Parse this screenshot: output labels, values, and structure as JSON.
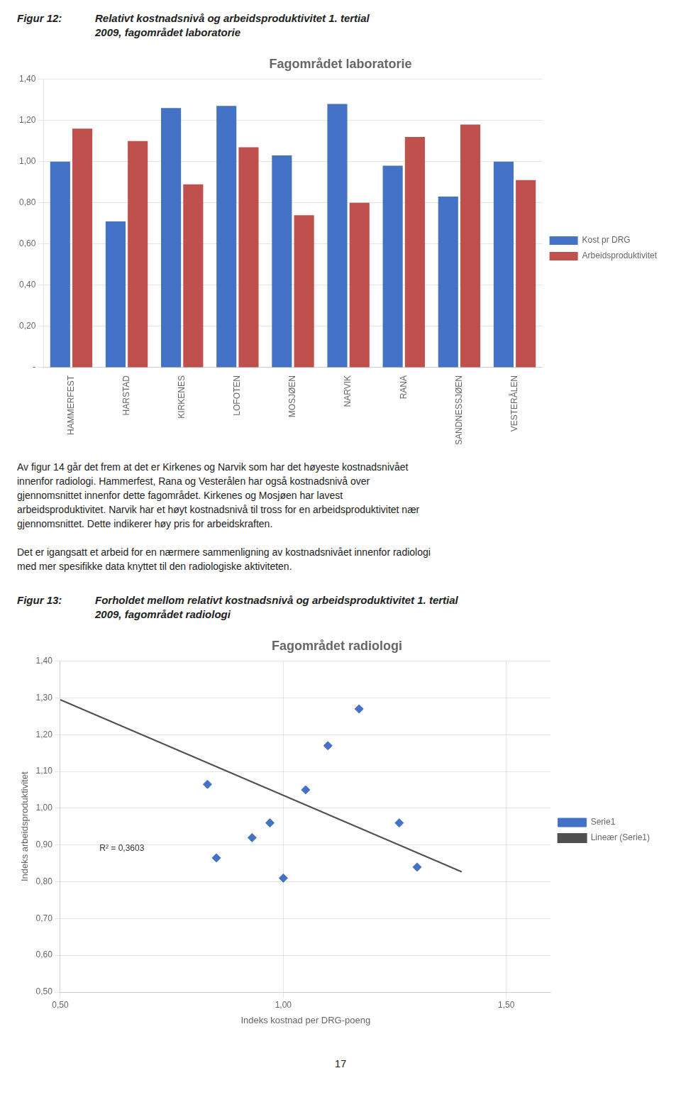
{
  "chart_data": [
    {
      "type": "bar",
      "caption_label": "Figur 12:",
      "caption": "Relativt kostnadsnivå og arbeidsproduktivitet 1. tertial\n2009, fagområdet laboratorie",
      "title": "Fagområdet laboratorie",
      "categories": [
        "HAMMERFEST",
        "HARSTAD",
        "KIRKENES",
        "LOFOTEN",
        "MOSJØEN",
        "NARVIK",
        "RANA",
        "SANDNESSJØEN",
        "VESTERÅLEN"
      ],
      "series": [
        {
          "name": "Kost pr DRG",
          "color": "#4472C4",
          "values": [
            1.0,
            0.71,
            1.26,
            1.27,
            1.03,
            1.28,
            0.98,
            0.83,
            1.0
          ]
        },
        {
          "name": "Arbeidsproduktivitet",
          "color": "#C0504D",
          "values": [
            1.16,
            1.1,
            0.89,
            1.07,
            0.74,
            0.8,
            1.12,
            1.18,
            0.91
          ]
        }
      ],
      "ylim": [
        0,
        1.4
      ],
      "yticks": [
        {
          "value": 0,
          "label": "-"
        },
        {
          "value": 0.2,
          "label": "0,20"
        },
        {
          "value": 0.4,
          "label": "0,40"
        },
        {
          "value": 0.6,
          "label": "0,60"
        },
        {
          "value": 0.8,
          "label": "0,80"
        },
        {
          "value": 1.0,
          "label": "1,00"
        },
        {
          "value": 1.2,
          "label": "1,20"
        },
        {
          "value": 1.4,
          "label": "1,40"
        }
      ],
      "grid": "y",
      "legend": "right"
    },
    {
      "type": "scatter",
      "caption_label": "Figur 13:",
      "caption": "Forholdet mellom relativt kostnadsnivå og arbeidsproduktivitet 1. tertial\n2009, fagområdet radiologi",
      "title": "Fagområdet radiologi",
      "x_label": "Indeks kostnad per DRG-poeng",
      "y_label": "Indeks arbeidsproduktivitet",
      "series": [
        {
          "name": "Serie1",
          "type": "scatter",
          "color": "#4472C4",
          "marker": "diamond",
          "x": [
            0.83,
            0.85,
            0.93,
            0.97,
            1.0,
            1.05,
            1.1,
            1.17,
            1.26,
            1.3
          ],
          "values": [
            1.065,
            0.865,
            0.92,
            0.96,
            0.81,
            1.05,
            1.17,
            1.27,
            0.96,
            0.84
          ]
        },
        {
          "name": "Lineær (Serie1)",
          "type": "line",
          "color": "#505050",
          "line_style": "solid",
          "x": [
            0.5,
            1.4
          ],
          "values": [
            1.295,
            0.827
          ]
        }
      ],
      "annotation": "R² = 0,3603",
      "xlim": [
        0.5,
        1.6
      ],
      "xticks": [
        {
          "value": 0.5,
          "label": "0,50"
        },
        {
          "value": 1.0,
          "label": "1,00"
        },
        {
          "value": 1.5,
          "label": "1,50"
        }
      ],
      "ylim": [
        0.5,
        1.4
      ],
      "yticks": [
        {
          "value": 0.5,
          "label": "0,50"
        },
        {
          "value": 0.6,
          "label": "0,60"
        },
        {
          "value": 0.7,
          "label": "0,70"
        },
        {
          "value": 0.8,
          "label": "0,80"
        },
        {
          "value": 0.9,
          "label": "0,90"
        },
        {
          "value": 1.0,
          "label": "1,00"
        },
        {
          "value": 1.1,
          "label": "1,10"
        },
        {
          "value": 1.2,
          "label": "1,20"
        },
        {
          "value": 1.3,
          "label": "1,30"
        },
        {
          "value": 1.4,
          "label": "1,40"
        }
      ],
      "grid": true,
      "legend": "right"
    }
  ],
  "body_text": [
    "Av figur 14 går det frem at det er Kirkenes og Narvik som har det høyeste kostnadsnivået\ninnenfor radiologi. Hammerfest, Rana og Vesterålen har også kostnadsnivå over\ngjennomsnittet innenfor dette fagområdet. Kirkenes og Mosjøen har lavest\narbeidsproduktivitet. Narvik har et høyt kostnadsnivå til tross for en arbeidsproduktivitet nær\ngjennomsnittet. Dette indikerer høy pris for arbeidskraften.",
    "Det er igangsatt et arbeid for en nærmere sammenligning av kostnadsnivået innenfor radiologi\nmed mer spesifikke data knyttet til den radiologiske aktiviteten."
  ],
  "page_number": "17"
}
